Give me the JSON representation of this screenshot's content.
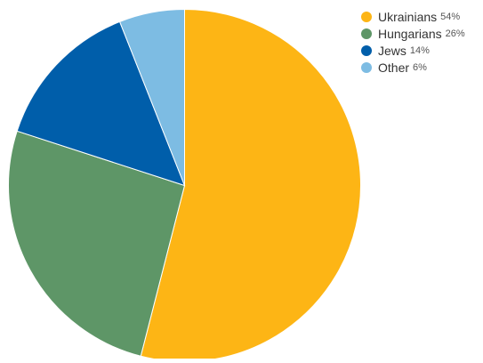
{
  "chart_data": {
    "type": "pie",
    "start_angle_deg": 0,
    "direction": "clockwise",
    "legend_position": "top-right",
    "slices": [
      {
        "label": "Ukrainians",
        "value": 54,
        "value_label": "54%",
        "color": "#FDB515"
      },
      {
        "label": "Hungarians",
        "value": 26,
        "value_label": "26%",
        "color": "#5E9667"
      },
      {
        "label": "Jews",
        "value": 14,
        "value_label": "14%",
        "color": "#005EAA"
      },
      {
        "label": "Other",
        "value": 6,
        "value_label": "6%",
        "color": "#7DBCE3"
      }
    ]
  }
}
